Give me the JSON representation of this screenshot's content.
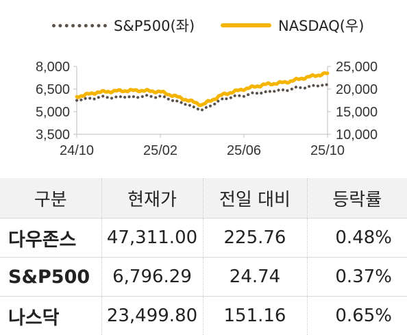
{
  "chart_data": {
    "type": "line",
    "x_ticks": [
      "24/10",
      "25/02",
      "25/06",
      "25/10"
    ],
    "y_left_ticks": [
      "8,000",
      "6,500",
      "5,000",
      "3,500"
    ],
    "y_right_ticks": [
      "25,000",
      "20,000",
      "15,000",
      "10,000"
    ],
    "y_left_lim": [
      3500,
      8000
    ],
    "y_right_lim": [
      10000,
      25000
    ],
    "grid": false,
    "legend_position": "top",
    "x": [
      "24/10",
      "24/11",
      "24/12",
      "25/01",
      "25/02",
      "25/03",
      "25/04",
      "25/05",
      "25/06",
      "25/07",
      "25/08",
      "25/09",
      "25/10"
    ],
    "series": [
      {
        "name": "S&P500(좌)",
        "axis": "left",
        "style": "dotted",
        "color": "#5a524a",
        "values": [
          5750,
          5950,
          5960,
          6000,
          6020,
          5600,
          5100,
          5850,
          6100,
          6300,
          6450,
          6650,
          6790
        ]
      },
      {
        "name": "NASDAQ(우)",
        "axis": "right",
        "style": "solid",
        "color": "#f5b400",
        "values": [
          18300,
          19300,
          19600,
          19700,
          19400,
          18000,
          16500,
          18800,
          20000,
          21000,
          21500,
          22600,
          23500
        ]
      }
    ]
  },
  "table": {
    "headers": [
      "구분",
      "현재가",
      "전일 대비",
      "등락률"
    ],
    "rows": [
      {
        "name": "다우존스",
        "price": "47,311.00",
        "change": "225.76",
        "rate": "0.48%"
      },
      {
        "name": "S&P500",
        "price": "6,796.29",
        "change": "24.74",
        "rate": "0.37%"
      },
      {
        "name": "나스닥",
        "price": "23,499.80",
        "change": "151.16",
        "rate": "0.65%"
      }
    ]
  }
}
